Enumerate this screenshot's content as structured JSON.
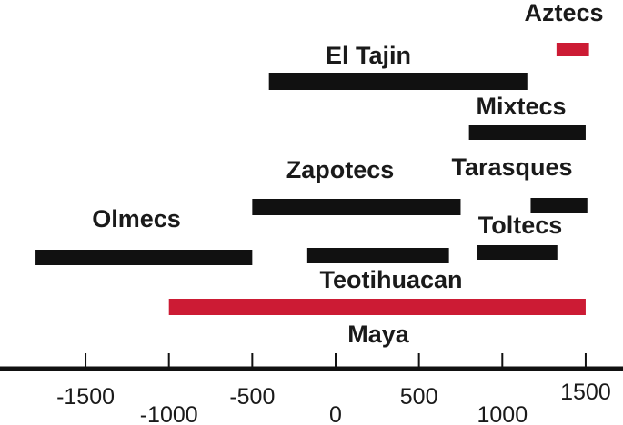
{
  "chart_data": {
    "type": "bar",
    "orientation": "horizontal-timeline",
    "title": "",
    "xlabel": "",
    "ylabel": "",
    "xlim": [
      -1900,
      1700
    ],
    "grid": false,
    "legend": "none",
    "ticks": [
      -1500,
      -1000,
      -500,
      0,
      500,
      1000,
      1500
    ],
    "tick_labels": [
      "-1500",
      "-1000",
      "-500",
      "0",
      "500",
      "1000",
      "1500"
    ],
    "colors": {
      "default": "#111111",
      "highlight": "#cc1b34",
      "axis": "#111111"
    },
    "bars": [
      {
        "label": "Aztecs",
        "start": 1325,
        "end": 1520,
        "color": "#cc1b34"
      },
      {
        "label": "El Tajin",
        "start": -400,
        "end": 1150,
        "color": "#111111"
      },
      {
        "label": "Mixtecs",
        "start": 800,
        "end": 1500,
        "color": "#111111"
      },
      {
        "label": "Zapotecs",
        "start": -500,
        "end": 750,
        "color": "#111111"
      },
      {
        "label": "Tarasques",
        "start": 1170,
        "end": 1510,
        "color": "#111111"
      },
      {
        "label": "Olmecs",
        "start": -1800,
        "end": -500,
        "color": "#111111"
      },
      {
        "label": "Toltecs",
        "start": 850,
        "end": 1330,
        "color": "#111111"
      },
      {
        "label": "Teotihuacan",
        "start": -170,
        "end": 680,
        "color": "#111111"
      },
      {
        "label": "Maya",
        "start": -1000,
        "end": 1500,
        "color": "#cc1b34"
      }
    ]
  }
}
